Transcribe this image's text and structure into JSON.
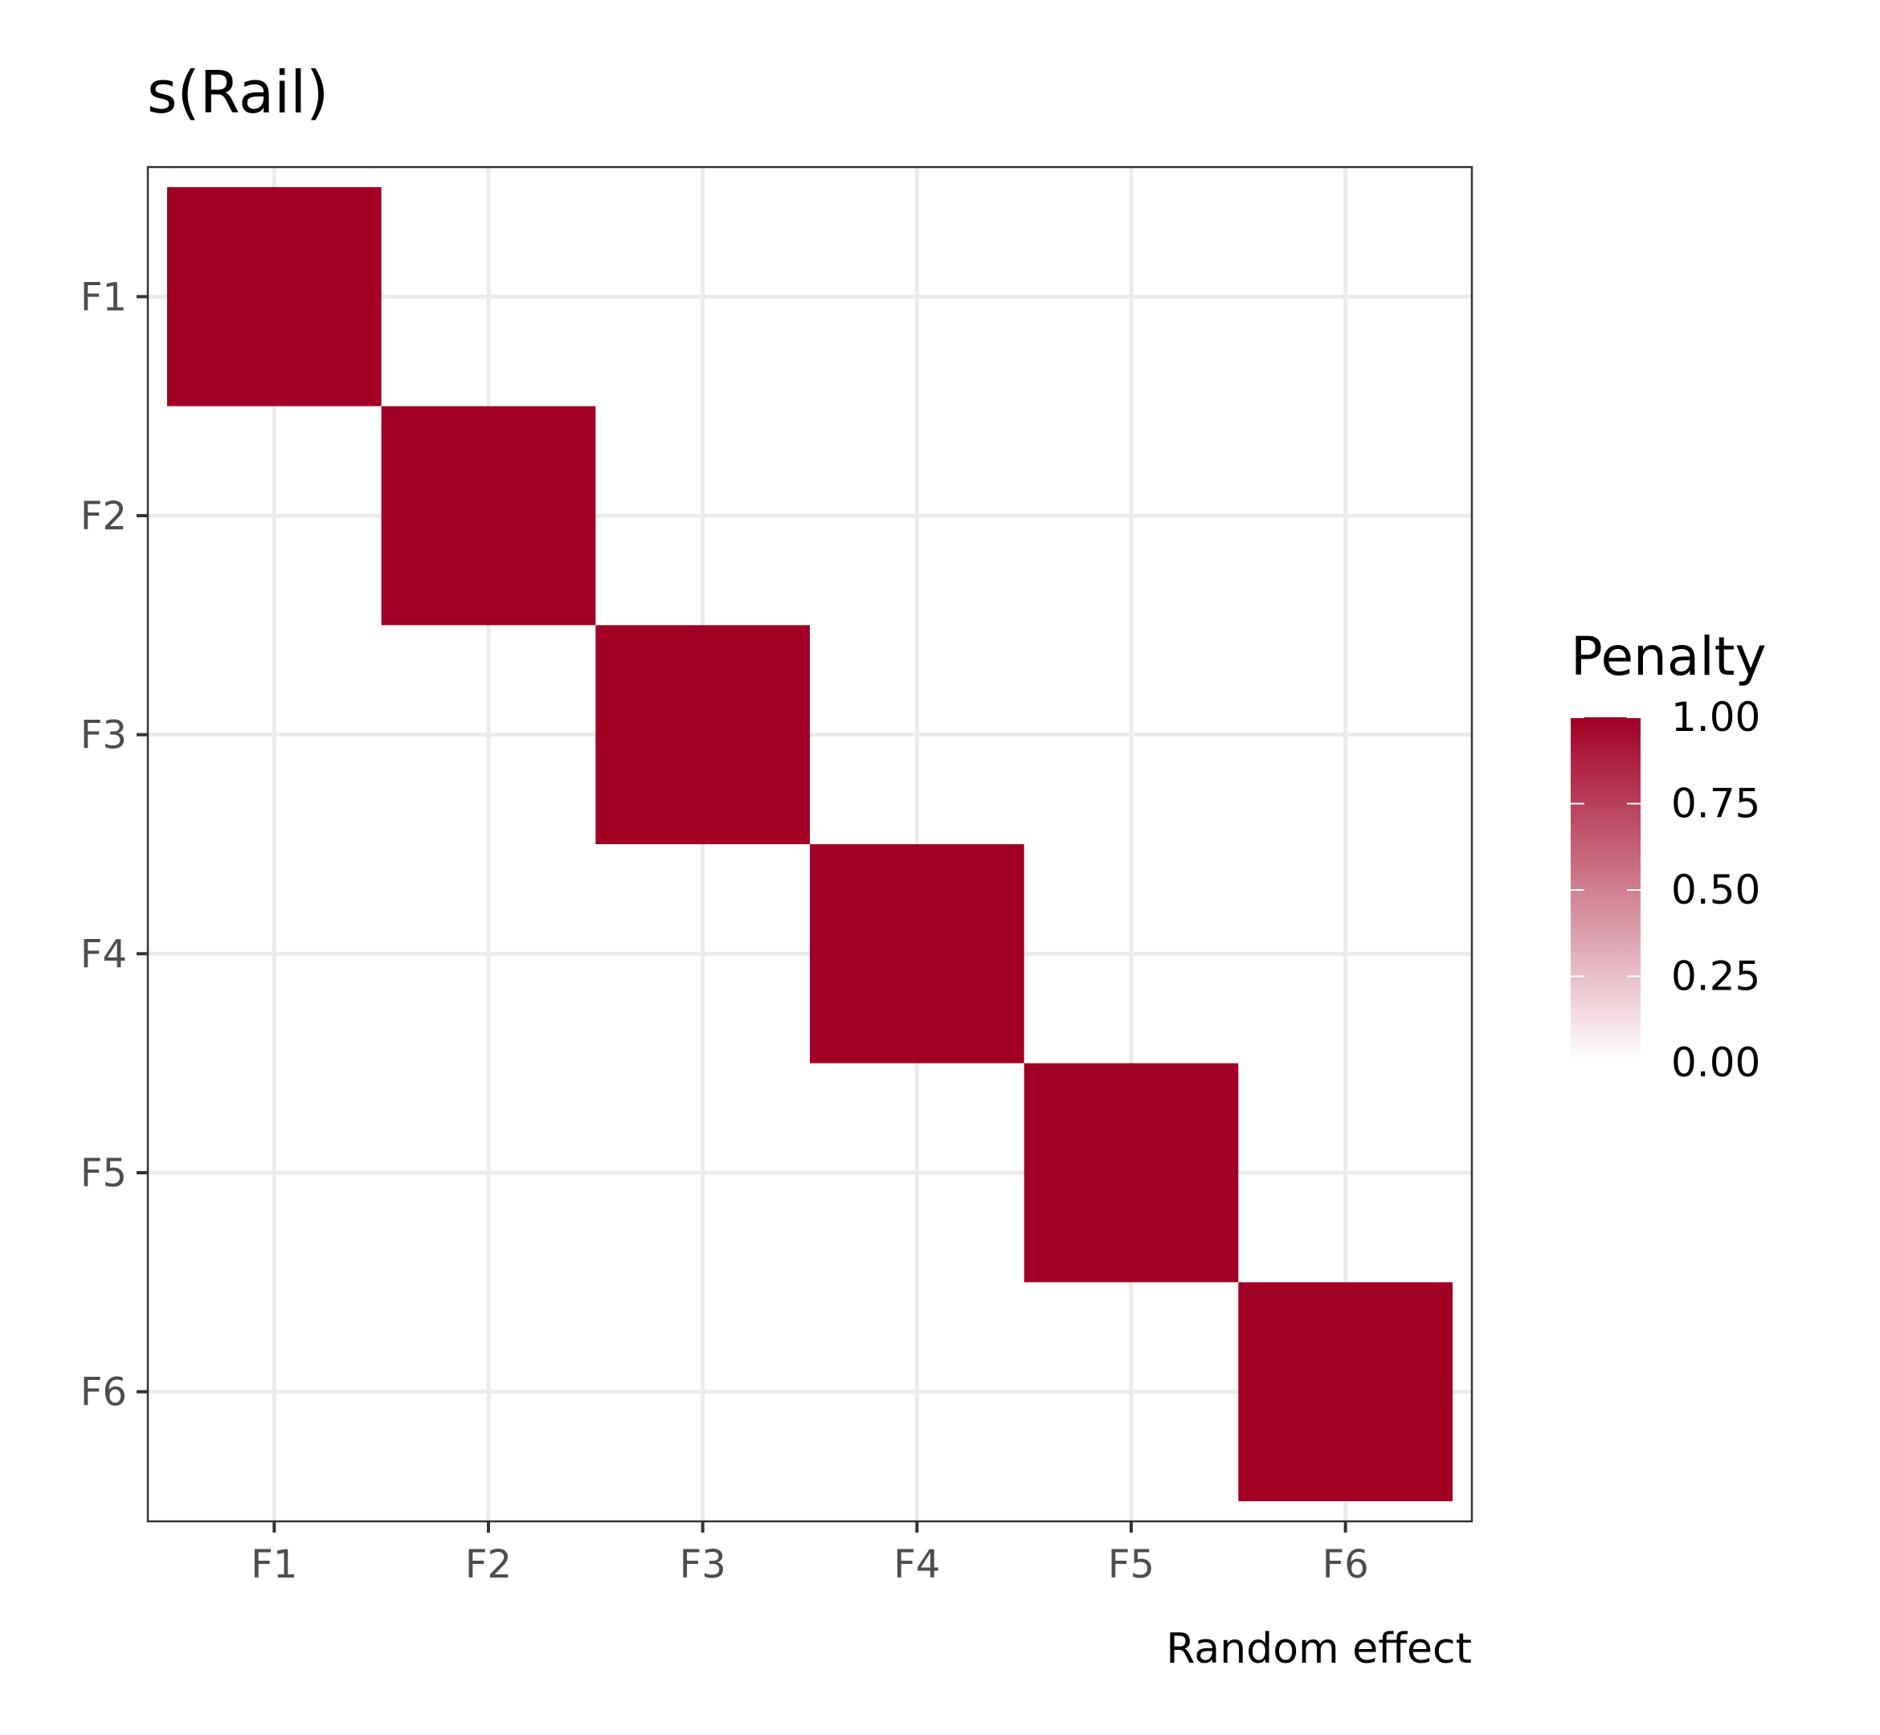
{
  "chart_data": {
    "type": "heatmap",
    "title": "s(Rail)",
    "xlabel": "Random effect",
    "ylabel": "",
    "x_categories": [
      "F1",
      "F2",
      "F3",
      "F4",
      "F5",
      "F6"
    ],
    "y_categories": [
      "F1",
      "F2",
      "F3",
      "F4",
      "F5",
      "F6"
    ],
    "values": [
      [
        1,
        0,
        0,
        0,
        0,
        0
      ],
      [
        0,
        1,
        0,
        0,
        0,
        0
      ],
      [
        0,
        0,
        1,
        0,
        0,
        0
      ],
      [
        0,
        0,
        0,
        1,
        0,
        0
      ],
      [
        0,
        0,
        0,
        0,
        1,
        0
      ],
      [
        0,
        0,
        0,
        0,
        0,
        1
      ]
    ],
    "legend": {
      "title": "Penalty",
      "ticks": [
        "0.00",
        "0.25",
        "0.50",
        "0.75",
        "1.00"
      ],
      "range": [
        0,
        1
      ],
      "position": "right"
    },
    "colors": {
      "low": "#ffffff",
      "high": "#a10024"
    },
    "grid": true
  }
}
